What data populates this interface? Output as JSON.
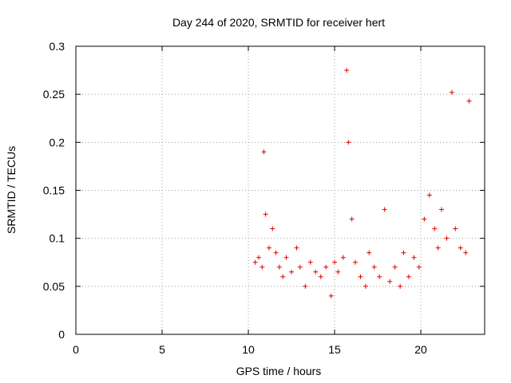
{
  "chart_data": {
    "type": "scatter",
    "title": "Day 244 of 2020, SRMTID for receiver hert",
    "xlabel": "GPS time / hours",
    "ylabel": "SRMTID / TECUs",
    "xlim": [
      0,
      23.7
    ],
    "ylim": [
      0,
      0.3
    ],
    "xticks": [
      "0",
      "5",
      "10",
      "15",
      "20"
    ],
    "yticks": [
      "0",
      "0.05",
      "0.1",
      "0.15",
      "0.2",
      "0.25",
      "0.3"
    ],
    "grid": true,
    "marker": "+",
    "color": "#e00000",
    "series": [
      {
        "name": "SRMTID",
        "x": [
          10.4,
          10.6,
          10.8,
          10.9,
          11.0,
          11.2,
          11.4,
          11.6,
          11.8,
          12.0,
          12.2,
          12.5,
          12.8,
          13.0,
          13.3,
          13.6,
          13.9,
          14.2,
          14.5,
          14.8,
          15.0,
          15.2,
          15.5,
          15.7,
          15.8,
          16.0,
          16.2,
          16.5,
          16.8,
          17.0,
          17.3,
          17.6,
          17.9,
          18.2,
          18.5,
          18.8,
          19.0,
          19.3,
          19.6,
          19.9,
          20.2,
          20.5,
          20.8,
          21.0,
          21.2,
          21.5,
          21.8,
          22.0,
          22.3,
          22.6,
          22.8
        ],
        "y": [
          0.075,
          0.08,
          0.07,
          0.19,
          0.125,
          0.09,
          0.11,
          0.085,
          0.07,
          0.06,
          0.08,
          0.065,
          0.09,
          0.07,
          0.05,
          0.075,
          0.065,
          0.06,
          0.07,
          0.04,
          0.075,
          0.065,
          0.08,
          0.275,
          0.2,
          0.12,
          0.075,
          0.06,
          0.05,
          0.085,
          0.07,
          0.06,
          0.13,
          0.055,
          0.07,
          0.05,
          0.085,
          0.06,
          0.08,
          0.07,
          0.12,
          0.145,
          0.11,
          0.09,
          0.13,
          0.1,
          0.252,
          0.11,
          0.09,
          0.085,
          0.243
        ]
      }
    ]
  }
}
